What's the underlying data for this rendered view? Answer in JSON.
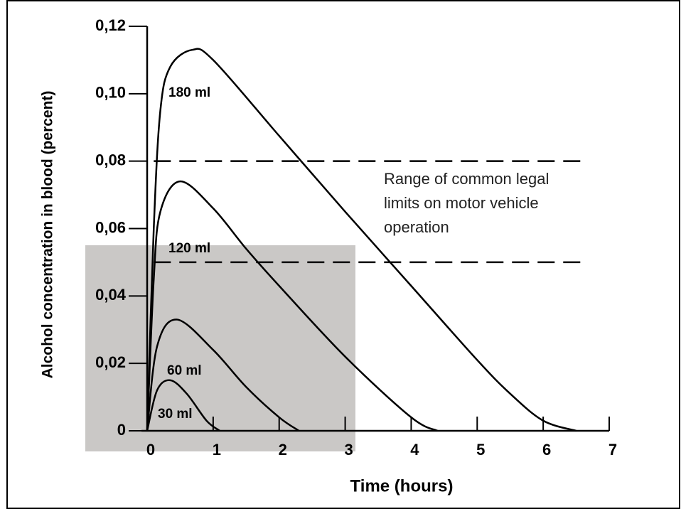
{
  "chart_data": {
    "type": "line",
    "ylabel": "Alcohol concentration in blood (percent)",
    "xlabel": "Time (hours)",
    "annotation": "Range of common legal limits on motor vehicle operation",
    "legal_limit_range": [
      0.05,
      0.08
    ],
    "xlim": [
      0,
      7
    ],
    "xticks": [
      0,
      1,
      2,
      3,
      4,
      5,
      6,
      7
    ],
    "ylim": [
      0,
      0.12
    ],
    "yticks": [
      0,
      {
        "value": 0.02,
        "label": "0,02"
      },
      {
        "value": 0.04,
        "label": "0,04"
      },
      {
        "value": 0.06,
        "label": "0,06"
      },
      {
        "value": 0.08,
        "label": "0,08"
      },
      {
        "value": 0.1,
        "label": "0,10"
      },
      {
        "value": 0.12,
        "label": "0,12"
      }
    ],
    "color": "#000000",
    "series": [
      {
        "name": "180 ml",
        "x": [
          0,
          0.1,
          0.2,
          0.35,
          0.68,
          1,
          2,
          3,
          4,
          5,
          5.5,
          6,
          6.5
        ],
        "values": [
          0,
          0.06,
          0.095,
          0.108,
          0.113,
          0.11,
          0.0875,
          0.065,
          0.043,
          0.021,
          0.011,
          0.003,
          0
        ]
      },
      {
        "name": "120 ml",
        "x": [
          0,
          0.1,
          0.2,
          0.5,
          1,
          1.5,
          2,
          3,
          4,
          4.4
        ],
        "values": [
          0,
          0.045,
          0.065,
          0.074,
          0.066,
          0.054,
          0.043,
          0.022,
          0.004,
          0
        ]
      },
      {
        "name": "60 ml",
        "x": [
          0,
          0.15,
          0.45,
          1,
          1.5,
          2,
          2.3
        ],
        "values": [
          0,
          0.025,
          0.033,
          0.024,
          0.013,
          0.004,
          0
        ]
      },
      {
        "name": "30 ml",
        "x": [
          0,
          0.15,
          0.35,
          0.6,
          0.9,
          1.1
        ],
        "values": [
          0,
          0.012,
          0.015,
          0.011,
          0.003,
          0
        ]
      }
    ]
  }
}
